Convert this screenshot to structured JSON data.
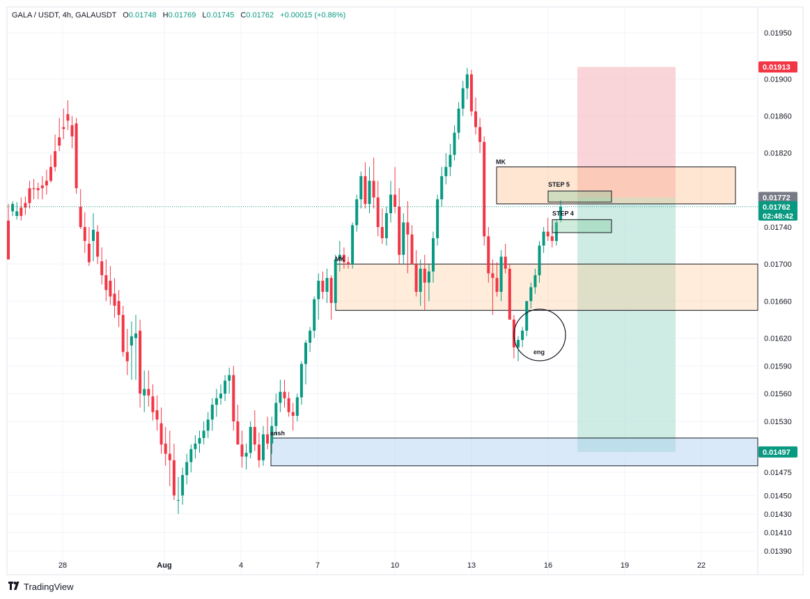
{
  "header": {
    "symbol": "GALA / USDT, 4h, GALAUSDT",
    "open_label": "O",
    "open": "0.01748",
    "high_label": "H",
    "high": "0.01769",
    "low_label": "L",
    "low": "0.01745",
    "close_label": "C",
    "close": "0.01762",
    "change": "+0.00015 (+0.86%)"
  },
  "footer": {
    "brand": "TradingView",
    "logo_icon": "tradingview-logo-icon"
  },
  "colors": {
    "up": "#089981",
    "down": "#f23645",
    "stop_zone": "#f7c6cb",
    "target_zone": "#c2e6dd"
  },
  "chart_data": {
    "type": "candlestick",
    "symbol": "GALAUSDT",
    "interval": "4h",
    "ylim": [
      0.0138,
      0.0196
    ],
    "y_ticks": [
      "0.01950",
      "0.01900",
      "0.01860",
      "0.01820",
      "0.01740",
      "0.01700",
      "0.01660",
      "0.01620",
      "0.01590",
      "0.01560",
      "0.01530",
      "0.01475",
      "0.01450",
      "0.01430",
      "0.01410",
      "0.01390"
    ],
    "x_ticks": [
      {
        "label": "28",
        "bold": false
      },
      {
        "label": "Aug",
        "bold": true
      },
      {
        "label": "4",
        "bold": false
      },
      {
        "label": "7",
        "bold": false
      },
      {
        "label": "10",
        "bold": false
      },
      {
        "label": "13",
        "bold": false
      },
      {
        "label": "16",
        "bold": false
      },
      {
        "label": "19",
        "bold": false
      },
      {
        "label": "22",
        "bold": false
      }
    ],
    "ohlc": [
      [
        0.01747,
        0.01765,
        0.01705,
        0.01705
      ],
      [
        0.01757,
        0.01768,
        0.01752,
        0.01765
      ],
      [
        0.01752,
        0.01767,
        0.01748,
        0.01757
      ],
      [
        0.01761,
        0.01772,
        0.01747,
        0.01752
      ],
      [
        0.01766,
        0.01773,
        0.01753,
        0.01761
      ],
      [
        0.01782,
        0.0179,
        0.0176,
        0.01766
      ],
      [
        0.01782,
        0.01792,
        0.0177,
        0.01781
      ],
      [
        0.01782,
        0.01788,
        0.0177,
        0.0178
      ],
      [
        0.01785,
        0.01795,
        0.0177,
        0.01782
      ],
      [
        0.0179,
        0.01802,
        0.01775,
        0.01785
      ],
      [
        0.01805,
        0.01818,
        0.01788,
        0.0179
      ],
      [
        0.01822,
        0.0184,
        0.018,
        0.01805
      ],
      [
        0.01837,
        0.01858,
        0.01822,
        0.01828
      ],
      [
        0.01848,
        0.01868,
        0.01835,
        0.01846
      ],
      [
        0.01862,
        0.01877,
        0.01845,
        0.01855
      ],
      [
        0.0185,
        0.0186,
        0.01825,
        0.01838
      ],
      [
        0.01852,
        0.01858,
        0.01776,
        0.01782
      ],
      [
        0.01762,
        0.01781,
        0.01738,
        0.0174
      ],
      [
        0.0174,
        0.01756,
        0.01712,
        0.01725
      ],
      [
        0.01722,
        0.0174,
        0.01698,
        0.01702
      ],
      [
        0.01725,
        0.01755,
        0.01703,
        0.01737
      ],
      [
        0.01735,
        0.01742,
        0.017,
        0.01708
      ],
      [
        0.01703,
        0.01718,
        0.01678,
        0.01688
      ],
      [
        0.01688,
        0.01705,
        0.0166,
        0.01672
      ],
      [
        0.01682,
        0.01698,
        0.01656,
        0.01665
      ],
      [
        0.01668,
        0.01685,
        0.01642,
        0.01655
      ],
      [
        0.0166,
        0.01672,
        0.01632,
        0.01645
      ],
      [
        0.01645,
        0.01655,
        0.016,
        0.01605
      ],
      [
        0.01605,
        0.0163,
        0.0158,
        0.01595
      ],
      [
        0.01612,
        0.01638,
        0.01575,
        0.01622
      ],
      [
        0.0162,
        0.01645,
        0.01575,
        0.01625
      ],
      [
        0.01628,
        0.0164,
        0.01545,
        0.0156
      ],
      [
        0.01558,
        0.01585,
        0.0154,
        0.01565
      ],
      [
        0.01565,
        0.01585,
        0.01546,
        0.01558
      ],
      [
        0.01557,
        0.0157,
        0.01531,
        0.0154
      ],
      [
        0.01542,
        0.01558,
        0.0152,
        0.01532
      ],
      [
        0.01528,
        0.01545,
        0.01495,
        0.01505
      ],
      [
        0.01506,
        0.01524,
        0.01482,
        0.01495
      ],
      [
        0.01495,
        0.0152,
        0.0146,
        0.01488
      ],
      [
        0.01488,
        0.01506,
        0.01445,
        0.0145
      ],
      [
        0.01445,
        0.0147,
        0.0143,
        0.01445
      ],
      [
        0.0145,
        0.0148,
        0.0144,
        0.01472
      ],
      [
        0.01472,
        0.01495,
        0.01462,
        0.01486
      ],
      [
        0.01486,
        0.01505,
        0.01475,
        0.015
      ],
      [
        0.015,
        0.01515,
        0.0149,
        0.01506
      ],
      [
        0.01506,
        0.0152,
        0.01496,
        0.01512
      ],
      [
        0.01512,
        0.0153,
        0.01505,
        0.0152
      ],
      [
        0.0152,
        0.0154,
        0.01512,
        0.01532
      ],
      [
        0.01532,
        0.01555,
        0.0152,
        0.01548
      ],
      [
        0.01548,
        0.01565,
        0.01535,
        0.01555
      ],
      [
        0.01555,
        0.0157,
        0.01548,
        0.0156
      ],
      [
        0.0156,
        0.0158,
        0.01552,
        0.01574
      ],
      [
        0.01574,
        0.01588,
        0.0156,
        0.0158
      ],
      [
        0.0158,
        0.0159,
        0.0152,
        0.0153
      ],
      [
        0.0153,
        0.01548,
        0.01505,
        0.01505
      ],
      [
        0.01505,
        0.0152,
        0.0148,
        0.01492
      ],
      [
        0.01492,
        0.01506,
        0.01478,
        0.01496
      ],
      [
        0.01496,
        0.0153,
        0.0149,
        0.01524
      ],
      [
        0.01524,
        0.01542,
        0.01498,
        0.01505
      ],
      [
        0.01505,
        0.01518,
        0.0148,
        0.01488
      ],
      [
        0.01488,
        0.01525,
        0.01482,
        0.01516
      ],
      [
        0.01516,
        0.01535,
        0.015,
        0.01506
      ],
      [
        0.01506,
        0.01535,
        0.01495,
        0.01525
      ],
      [
        0.01525,
        0.0156,
        0.01515,
        0.0155
      ],
      [
        0.0155,
        0.01575,
        0.0154,
        0.01562
      ],
      [
        0.01562,
        0.01575,
        0.01545,
        0.01555
      ],
      [
        0.01555,
        0.01562,
        0.01535,
        0.0154
      ],
      [
        0.0154,
        0.0155,
        0.0152,
        0.01536
      ],
      [
        0.01536,
        0.0156,
        0.0153,
        0.01556
      ],
      [
        0.01556,
        0.01595,
        0.01548,
        0.01592
      ],
      [
        0.01592,
        0.01618,
        0.0157,
        0.01615
      ],
      [
        0.01615,
        0.01632,
        0.01605,
        0.01628
      ],
      [
        0.01628,
        0.01665,
        0.0162,
        0.01662
      ],
      [
        0.01662,
        0.0169,
        0.0164,
        0.01682
      ],
      [
        0.01682,
        0.01692,
        0.01662,
        0.0167
      ],
      [
        0.0167,
        0.01695,
        0.01658,
        0.01685
      ],
      [
        0.01685,
        0.01688,
        0.0164,
        0.01658
      ],
      [
        0.01658,
        0.0171,
        0.01652,
        0.01705
      ],
      [
        0.01705,
        0.01725,
        0.01692,
        0.0171
      ],
      [
        0.0171,
        0.01718,
        0.01695,
        0.01702
      ],
      [
        0.01702,
        0.01708,
        0.01695,
        0.017
      ],
      [
        0.017,
        0.01745,
        0.01695,
        0.01742
      ],
      [
        0.01742,
        0.01775,
        0.01735,
        0.0177
      ],
      [
        0.0177,
        0.018,
        0.0176,
        0.01795
      ],
      [
        0.01795,
        0.0181,
        0.0176,
        0.01765
      ],
      [
        0.01765,
        0.01805,
        0.01755,
        0.0179
      ],
      [
        0.0179,
        0.01815,
        0.0176,
        0.01772
      ],
      [
        0.01772,
        0.0179,
        0.0173,
        0.0174
      ],
      [
        0.0174,
        0.0176,
        0.01722,
        0.01728
      ],
      [
        0.01728,
        0.01762,
        0.0172,
        0.01755
      ],
      [
        0.01755,
        0.0179,
        0.01745,
        0.01775
      ],
      [
        0.01775,
        0.01805,
        0.01755,
        0.01762
      ],
      [
        0.01762,
        0.01782,
        0.017,
        0.0171
      ],
      [
        0.0171,
        0.01755,
        0.017,
        0.01745
      ],
      [
        0.01745,
        0.01768,
        0.0169,
        0.01732
      ],
      [
        0.01732,
        0.01742,
        0.017,
        0.017
      ],
      [
        0.017,
        0.01715,
        0.01665,
        0.0167
      ],
      [
        0.0167,
        0.01705,
        0.01655,
        0.01695
      ],
      [
        0.01695,
        0.0171,
        0.0165,
        0.0168
      ],
      [
        0.0168,
        0.017,
        0.0166,
        0.01692
      ],
      [
        0.01692,
        0.01735,
        0.0168,
        0.01728
      ],
      [
        0.01728,
        0.01775,
        0.0172,
        0.0177
      ],
      [
        0.0177,
        0.01805,
        0.01762,
        0.01795
      ],
      [
        0.01795,
        0.0182,
        0.01786,
        0.01805
      ],
      [
        0.01805,
        0.0183,
        0.01795,
        0.01818
      ],
      [
        0.01818,
        0.0185,
        0.01812,
        0.01842
      ],
      [
        0.01842,
        0.01875,
        0.01835,
        0.01868
      ],
      [
        0.01868,
        0.01898,
        0.0186,
        0.0189
      ],
      [
        0.0189,
        0.01912,
        0.01878,
        0.01905
      ],
      [
        0.01905,
        0.0191,
        0.0186,
        0.01865
      ],
      [
        0.01865,
        0.0188,
        0.0184,
        0.01848
      ],
      [
        0.01848,
        0.01858,
        0.0182,
        0.01832
      ],
      [
        0.01832,
        0.01838,
        0.0172,
        0.0173
      ],
      [
        0.0173,
        0.0174,
        0.0168,
        0.0169
      ],
      [
        0.0169,
        0.01705,
        0.01645,
        0.01685
      ],
      [
        0.01685,
        0.01702,
        0.01665,
        0.0167
      ],
      [
        0.0167,
        0.01715,
        0.0166,
        0.01708
      ],
      [
        0.01708,
        0.01722,
        0.0169,
        0.01695
      ],
      [
        0.01695,
        0.017,
        0.0164,
        0.0164
      ],
      [
        0.0164,
        0.01645,
        0.01598,
        0.0161
      ],
      [
        0.0161,
        0.01622,
        0.01595,
        0.01618
      ],
      [
        0.01618,
        0.01632,
        0.0161,
        0.01628
      ],
      [
        0.01628,
        0.0166,
        0.01622,
        0.0166
      ],
      [
        0.0166,
        0.0168,
        0.01652,
        0.01675
      ],
      [
        0.01675,
        0.01695,
        0.01668,
        0.01688
      ],
      [
        0.01688,
        0.01725,
        0.0168,
        0.0172
      ],
      [
        0.0172,
        0.0174,
        0.01712,
        0.01735
      ],
      [
        0.01735,
        0.0175,
        0.01725,
        0.0173
      ],
      [
        0.0173,
        0.01742,
        0.01718,
        0.01725
      ],
      [
        0.01725,
        0.01748,
        0.0172,
        0.01745
      ],
      [
        0.01748,
        0.01769,
        0.01745,
        0.01762
      ]
    ],
    "last_price_line": 0.01762,
    "zones": [
      {
        "label": "MK",
        "type": "supply",
        "top": 0.01805,
        "bottom": 0.01765
      },
      {
        "label": "MK",
        "type": "demand",
        "top": 0.017,
        "bottom": 0.0165
      },
      {
        "label": "ansh",
        "type": "demand",
        "top": 0.01512,
        "bottom": 0.01482
      }
    ],
    "steps": [
      {
        "label": "STEP 5",
        "top": 0.01779,
        "bottom": 0.01767
      },
      {
        "label": "STEP 4",
        "top": 0.01748,
        "bottom": 0.01734
      }
    ],
    "position": {
      "type": "long",
      "stop_price": 0.01913,
      "entry_price": 0.01772,
      "target_price": 0.01497
    },
    "annotations": [
      {
        "label": "eng",
        "shape": "circle",
        "price": 0.01595
      }
    ],
    "price_tags": [
      {
        "name": "stop",
        "value": "0.01913",
        "color": "#f23645"
      },
      {
        "name": "entry",
        "value": "0.01772",
        "color": "#787b86"
      },
      {
        "name": "last",
        "value": "0.01762",
        "color": "#089981",
        "countdown": "02:48:42"
      },
      {
        "name": "target",
        "value": "0.01497",
        "color": "#089981"
      }
    ]
  }
}
